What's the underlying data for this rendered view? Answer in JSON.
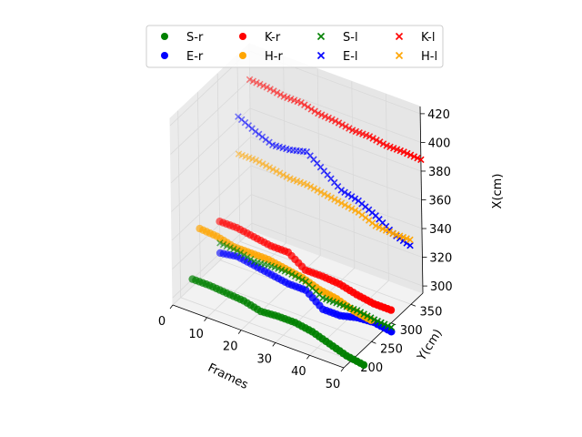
{
  "chart_data": {
    "type": "scatter",
    "projection": "3d",
    "title": "",
    "xlabel": "Frames",
    "ylabel": "Y(cm)",
    "zlabel": "X(cm)",
    "xlim": [
      0,
      50
    ],
    "ylim": [
      180,
      380
    ],
    "zlim": [
      295,
      425
    ],
    "x_ticks": [
      "0",
      "10",
      "20",
      "30",
      "40",
      "50"
    ],
    "y_ticks": [
      "200",
      "250",
      "300",
      "350"
    ],
    "z_ticks": [
      "300",
      "320",
      "340",
      "360",
      "380",
      "400",
      "420"
    ],
    "grid": true,
    "legend": {
      "placement": "top-center",
      "columns": 4
    },
    "series": [
      {
        "name": "S-r",
        "color": "#008000",
        "marker": "circle",
        "x": [
          0,
          5,
          10,
          15,
          20,
          25,
          30,
          35,
          40,
          45,
          50
        ],
        "y": [
          230,
          230,
          230,
          230,
          230,
          230,
          230,
          230,
          230,
          230,
          230
        ],
        "z": [
          300,
          300,
          299,
          298,
          295,
          296,
          296,
          294,
          290,
          286,
          284
        ]
      },
      {
        "name": "E-r",
        "color": "#0000ff",
        "marker": "circle",
        "x": [
          0,
          5,
          10,
          15,
          20,
          25,
          30,
          35,
          40,
          45,
          50
        ],
        "y": [
          300,
          300,
          300,
          300,
          300,
          300,
          300,
          300,
          300,
          300,
          300
        ],
        "z": [
          300,
          302,
          300,
          298,
          296,
          296,
          287,
          287,
          290,
          291,
          289
        ]
      },
      {
        "name": "K-r",
        "color": "#ff0000",
        "marker": "circle",
        "x": [
          0,
          5,
          10,
          15,
          20,
          25,
          30,
          35,
          40,
          45,
          50
        ],
        "y": [
          300,
          300,
          300,
          300,
          300,
          300,
          300,
          300,
          300,
          300,
          300
        ],
        "z": [
          322,
          322,
          320,
          318,
          318,
          310,
          310,
          309,
          306,
          304,
          304
        ]
      },
      {
        "name": "H-r",
        "color": "#ffa500",
        "marker": "circle",
        "x": [
          0,
          5,
          10,
          15,
          20,
          25,
          30,
          35,
          40,
          45,
          50
        ],
        "y": [
          250,
          250,
          250,
          250,
          250,
          250,
          250,
          250,
          250,
          250,
          250
        ],
        "z": [
          330,
          329,
          326,
          326,
          326,
          324,
          322,
          318,
          316,
          312,
          310
        ]
      },
      {
        "name": "S-l",
        "color": "#008000",
        "marker": "x",
        "x": [
          0,
          5,
          10,
          15,
          20,
          25,
          30,
          35,
          40,
          45,
          50
        ],
        "y": [
          300,
          300,
          300,
          300,
          300,
          300,
          300,
          300,
          300,
          300,
          300
        ],
        "z": [
          307,
          306,
          303,
          304,
          304,
          302,
          295,
          295,
          295,
          293,
          292
        ]
      },
      {
        "name": "E-l",
        "color": "#0000ff",
        "marker": "x",
        "x": [
          0,
          5,
          10,
          15,
          20,
          25,
          30,
          35,
          40,
          45,
          50
        ],
        "y": [
          350,
          350,
          350,
          350,
          350,
          350,
          350,
          350,
          350,
          350,
          350
        ],
        "z": [
          382,
          376,
          371,
          372,
          375,
          366,
          357,
          354,
          348,
          340,
          336
        ]
      },
      {
        "name": "K-l",
        "color": "#ff0000",
        "marker": "x",
        "x": [
          0,
          5,
          10,
          15,
          20,
          25,
          30,
          35,
          40,
          45,
          50
        ],
        "y": [
          380,
          380,
          380,
          380,
          380,
          380,
          380,
          380,
          380,
          380,
          380
        ],
        "z": [
          400,
          399,
          397,
          397,
          394,
          393,
          391,
          391,
          389,
          389,
          388
        ]
      },
      {
        "name": "H-l",
        "color": "#ffa500",
        "marker": "x",
        "x": [
          0,
          5,
          10,
          15,
          20,
          25,
          30,
          35,
          40,
          45,
          50
        ],
        "y": [
          350,
          350,
          350,
          350,
          350,
          350,
          350,
          350,
          350,
          350,
          350
        ],
        "z": [
          356,
          356,
          354,
          352,
          352,
          350,
          348,
          346,
          341,
          340,
          340
        ]
      }
    ]
  }
}
